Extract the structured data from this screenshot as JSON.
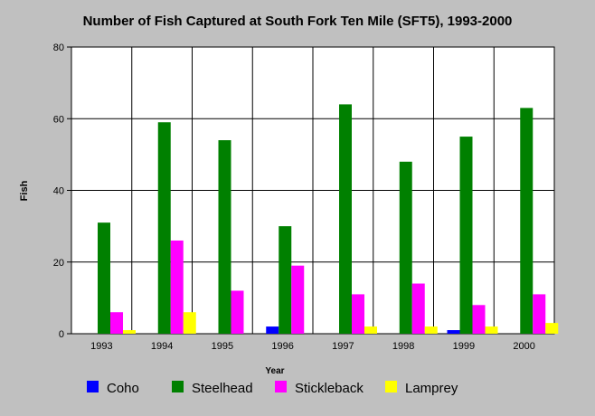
{
  "chart_data": {
    "type": "bar",
    "title": "Number of Fish Captured at South Fork Ten Mile (SFT5), 1993-2000",
    "xlabel": "Year",
    "ylabel": "Fish",
    "ylim": [
      0,
      80
    ],
    "yticks": [
      0,
      20,
      40,
      60,
      80
    ],
    "grid": true,
    "legend_position": "bottom",
    "categories": [
      "1993",
      "1994",
      "1995",
      "1996",
      "1997",
      "1998",
      "1999",
      "2000"
    ],
    "series": [
      {
        "name": "Coho",
        "color": "#0000ff",
        "values": [
          0,
          0,
          0,
          2,
          0,
          0,
          1,
          0
        ]
      },
      {
        "name": "Steelhead",
        "color": "#008000",
        "values": [
          31,
          59,
          54,
          30,
          64,
          48,
          55,
          63
        ]
      },
      {
        "name": "Stickleback",
        "color": "#ff00ff",
        "values": [
          6,
          26,
          12,
          19,
          11,
          14,
          8,
          11
        ]
      },
      {
        "name": "Lamprey",
        "color": "#ffff00",
        "values": [
          1,
          6,
          0,
          0,
          2,
          2,
          2,
          3
        ]
      }
    ]
  },
  "colors": {
    "background": "#c0c0c0",
    "plot_background": "#ffffff",
    "grid": "#000000"
  }
}
